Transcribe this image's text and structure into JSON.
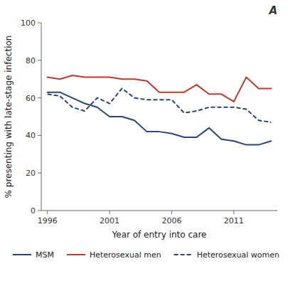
{
  "chart_data": {
    "type": "line",
    "title": "A",
    "x_label": "Year of entry into care",
    "y_label": "% presenting with late-stage infection",
    "x": [
      1996,
      1997,
      1998,
      1999,
      2000,
      2001,
      2002,
      2003,
      2004,
      2005,
      2006,
      2007,
      2008,
      2009,
      2010,
      2011,
      2012,
      2013,
      2014
    ],
    "series": [
      {
        "name": "MSM",
        "color": "#2b4478",
        "line_style": "solid",
        "values": [
          63,
          63,
          60,
          57,
          55,
          50,
          50,
          48,
          42,
          42,
          41,
          39,
          39,
          44,
          38,
          37,
          35,
          35,
          37
        ]
      },
      {
        "name": "Heterosexual men",
        "color": "#c0392b",
        "line_style": "solid",
        "values": [
          71,
          70,
          72,
          71,
          71,
          71,
          70,
          70,
          69,
          63,
          63,
          63,
          67,
          62,
          62,
          58,
          71,
          65,
          65
        ]
      },
      {
        "name": "Heterosexual women",
        "color": "#2b4478",
        "line_style": "dashed",
        "values": [
          62,
          61,
          55,
          53,
          60,
          57,
          65,
          60,
          59,
          59,
          59,
          52,
          53,
          55,
          55,
          55,
          54,
          48,
          47
        ]
      }
    ],
    "xlim": [
      1995.5,
      2014.5
    ],
    "ylim": [
      0,
      100
    ],
    "xticks": [
      1996,
      2001,
      2006,
      2011
    ],
    "yticks": [
      0,
      20,
      40,
      60,
      80,
      100
    ],
    "grid": false,
    "legend": "bottom"
  }
}
